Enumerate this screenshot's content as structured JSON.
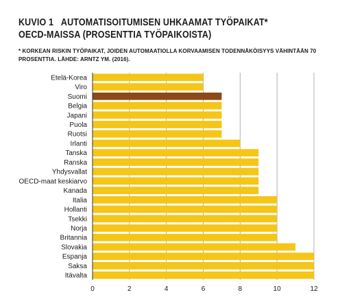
{
  "header": {
    "figure_label": "KUVIO 1",
    "title_line1": "AUTOMATISOITUMISEN UHKAAMAT TYÖPAIKAT*",
    "title_line2": "OECD-MAISSA (PROSENTTIA TYÖPAIKOISTA)",
    "note_line1": "* KORKEAN RISKIN TYÖPAIKAT, JOIDEN AUTOMAATIOLLA KORVAAMISEN TODENNÄKÖISYYS VÄHINTÄÄN 70",
    "note_line2": "PROSENTTIA. LÄHDE: ARNTZ YM. (2016)."
  },
  "chart_data": {
    "type": "bar",
    "orientation": "horizontal",
    "categories": [
      "Etelä-Korea",
      "Viro",
      "Suomi",
      "Belgia",
      "Japani",
      "Puola",
      "Ruotsi",
      "Irlanti",
      "Tanska",
      "Ranska",
      "Yhdysvallat",
      "OECD-maat keskiarvo",
      "Kanada",
      "Italia",
      "Hollanti",
      "Tsekki",
      "Norja",
      "Britannia",
      "Slovakia",
      "Espanja",
      "Saksa",
      "Itävalta"
    ],
    "values": [
      6,
      6,
      7,
      7,
      7,
      7,
      7,
      8,
      9,
      9,
      9,
      9,
      9,
      10,
      10,
      10,
      10,
      10,
      11,
      12,
      12,
      12
    ],
    "highlight": "Suomi",
    "xlim": [
      0,
      12
    ],
    "xticks": [
      0,
      2,
      4,
      6,
      8,
      10,
      12
    ],
    "grid": true,
    "colors": {
      "bar": "#F5C518",
      "highlight": "#8B4A16",
      "grid": "#b0b0b0"
    }
  }
}
